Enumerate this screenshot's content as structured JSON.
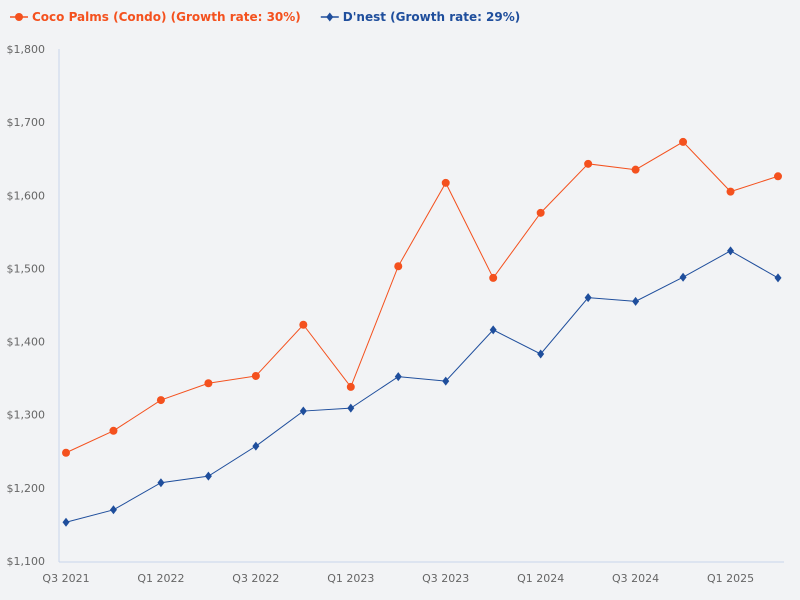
{
  "chart_data": {
    "type": "line",
    "x": [
      "Q3 2021",
      "Q4 2021",
      "Q1 2022",
      "Q2 2022",
      "Q3 2022",
      "Q4 2022",
      "Q1 2023",
      "Q2 2023",
      "Q3 2023",
      "Q4 2023",
      "Q1 2024",
      "Q2 2024",
      "Q3 2024",
      "Q4 2024",
      "Q1 2025",
      "Q2 2025"
    ],
    "x_tick_labels": [
      "Q3 2021",
      "Q1 2022",
      "Q3 2022",
      "Q1 2023",
      "Q3 2023",
      "Q1 2024",
      "Q3 2024",
      "Q1 2025"
    ],
    "y_tick_labels": [
      "$1,100",
      "$1,200",
      "$1,300",
      "$1,400",
      "$1,500",
      "$1,600",
      "$1,700",
      "$1,800"
    ],
    "ylim": [
      1100,
      1800
    ],
    "grid": false,
    "legend_position": "top-left",
    "series": [
      {
        "name": "Coco Palms (Condo) (Growth rate: 30%)",
        "color": "#f4511e",
        "marker": "circle",
        "values": [
          1248,
          1278,
          1320,
          1343,
          1353,
          1423,
          1338,
          1503,
          1617,
          1487,
          1576,
          1643,
          1635,
          1673,
          1605,
          1626
        ]
      },
      {
        "name": "D'nest (Growth rate: 29%)",
        "color": "#1f4e9c",
        "marker": "diamond",
        "values": [
          1153,
          1170,
          1207,
          1216,
          1257,
          1305,
          1309,
          1352,
          1346,
          1416,
          1383,
          1460,
          1455,
          1488,
          1524,
          1487
        ]
      }
    ]
  }
}
